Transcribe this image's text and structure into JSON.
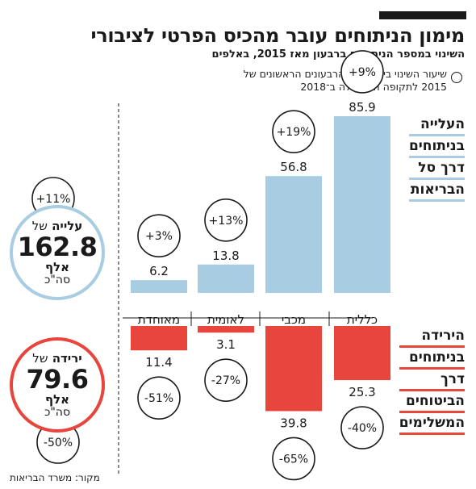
{
  "title": "מימון הניתוחים עובר מהכיס הפרטי לציבורי",
  "subtitle": "השינוי במספר הניתוחים ברבעון מאז 2015, באלפים",
  "legend_text": "שיעור השינוי בין שלושת הרבעונים הראשונים של 2015 לתקופה המקבילה ב־2018",
  "side_label_up": [
    "העלייה",
    "בניתוחים",
    "דרך סל",
    "הבריאות"
  ],
  "side_label_down": [
    "הירידה",
    "בניתוחים",
    "דרך",
    "הביטוחים",
    "המשלימים"
  ],
  "total_up": {
    "word": "עלייה",
    "of": "של",
    "value": "162.8",
    "unit": "אלף",
    "unit2": "סה\"כ",
    "pct": "+11%"
  },
  "total_down": {
    "word": "ירידה",
    "of": "של",
    "value": "79.6",
    "unit": "אלף",
    "unit2": "סה\"כ",
    "pct": "-50%"
  },
  "source": "מקור: משרד הבריאות",
  "colors": {
    "up": "#a8cde3",
    "down": "#e8453c",
    "text": "#1a1a1a"
  },
  "chart_data": {
    "type": "bar",
    "categories": [
      "כללית",
      "מכבי",
      "לאומית",
      "מאוחדת"
    ],
    "series": [
      {
        "values": [
          85.9,
          56.8,
          13.8,
          6.2
        ],
        "labels": [
          "+9%",
          "+19%",
          "+13%",
          "+3%"
        ]
      },
      {
        "values": [
          -25.3,
          -39.8,
          -3.1,
          -11.4
        ],
        "labels": [
          "-40%",
          "-65%",
          "-27%",
          "-51%"
        ]
      }
    ]
  }
}
